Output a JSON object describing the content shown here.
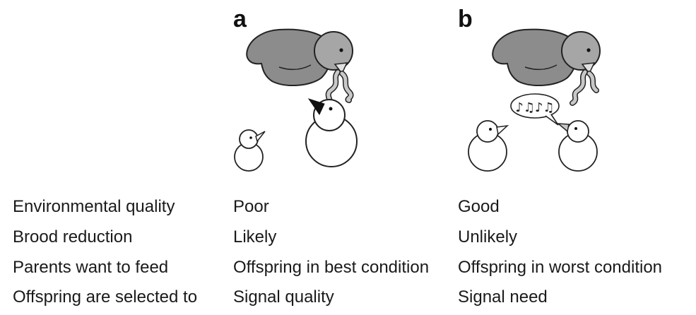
{
  "panels": {
    "a": {
      "letter": "a"
    },
    "b": {
      "letter": "b"
    }
  },
  "song_symbol": "♪♫♪♫",
  "table": {
    "rows": [
      {
        "label": "Environmental quality",
        "a": "Poor",
        "b": "Good"
      },
      {
        "label": "Brood reduction",
        "a": "Likely",
        "b": "Unlikely"
      },
      {
        "label": "Parents want to feed",
        "a": "Offspring in best condition",
        "b": "Offspring in worst condition"
      },
      {
        "label": "Offspring are selected to",
        "a": "Signal quality",
        "b": "Signal need"
      }
    ]
  },
  "colors": {
    "parent_body": "#8c8c8c",
    "parent_head": "#a6a6a6",
    "worm": "#c8c8c8",
    "chick": "#ffffff",
    "outline": "#222222",
    "signal_flag": "#111111"
  }
}
